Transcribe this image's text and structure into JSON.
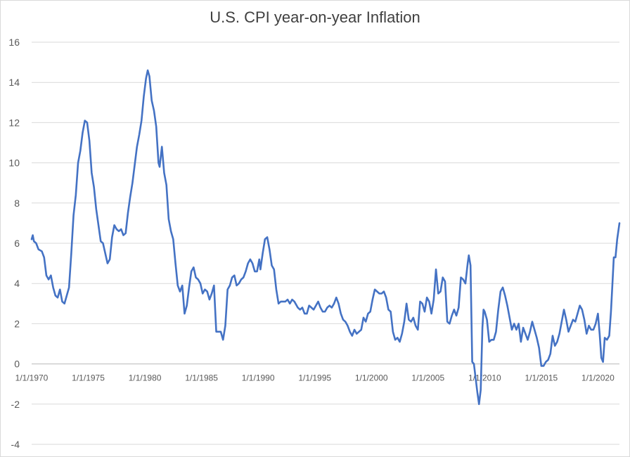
{
  "chart_data": {
    "type": "line",
    "title": "U.S. CPI year-on-year Inflation",
    "xlabel": "",
    "ylabel": "",
    "ylim": [
      -4,
      16
    ],
    "yticks": [
      -4,
      -2,
      0,
      2,
      4,
      6,
      8,
      10,
      12,
      14,
      16
    ],
    "xlim": [
      1970.0,
      2021.9
    ],
    "xtick_labels": [
      "1/1/1970",
      "1/1/1975",
      "1/1/1980",
      "1/1/1985",
      "1/1/1990",
      "1/1/1995",
      "1/1/2000",
      "1/1/2005",
      "1/1/2010",
      "1/1/2015",
      "1/1/2020"
    ],
    "xtick_values": [
      1970,
      1975,
      1980,
      1985,
      1990,
      1995,
      2000,
      2005,
      2010,
      2015,
      2020
    ],
    "grid": "horizontal",
    "legend": "none",
    "series": [
      {
        "color": "#4472c4",
        "points": [
          [
            1970.0,
            6.2
          ],
          [
            1970.1,
            6.4
          ],
          [
            1970.2,
            6.1
          ],
          [
            1970.4,
            6.0
          ],
          [
            1970.6,
            5.7
          ],
          [
            1970.9,
            5.6
          ],
          [
            1971.1,
            5.3
          ],
          [
            1971.3,
            4.4
          ],
          [
            1971.5,
            4.2
          ],
          [
            1971.7,
            4.4
          ],
          [
            1971.9,
            3.8
          ],
          [
            1972.1,
            3.4
          ],
          [
            1972.3,
            3.3
          ],
          [
            1972.5,
            3.7
          ],
          [
            1972.7,
            3.1
          ],
          [
            1972.9,
            3.0
          ],
          [
            1973.1,
            3.4
          ],
          [
            1973.3,
            3.8
          ],
          [
            1973.5,
            5.5
          ],
          [
            1973.7,
            7.4
          ],
          [
            1973.9,
            8.4
          ],
          [
            1974.1,
            10.0
          ],
          [
            1974.3,
            10.6
          ],
          [
            1974.5,
            11.5
          ],
          [
            1974.7,
            12.1
          ],
          [
            1974.9,
            12.0
          ],
          [
            1975.1,
            11.1
          ],
          [
            1975.3,
            9.5
          ],
          [
            1975.5,
            8.8
          ],
          [
            1975.7,
            7.7
          ],
          [
            1975.9,
            6.9
          ],
          [
            1976.1,
            6.1
          ],
          [
            1976.3,
            6.0
          ],
          [
            1976.5,
            5.5
          ],
          [
            1976.7,
            5.0
          ],
          [
            1976.9,
            5.2
          ],
          [
            1977.1,
            6.3
          ],
          [
            1977.3,
            6.9
          ],
          [
            1977.5,
            6.7
          ],
          [
            1977.7,
            6.6
          ],
          [
            1977.9,
            6.7
          ],
          [
            1978.1,
            6.4
          ],
          [
            1978.3,
            6.5
          ],
          [
            1978.5,
            7.5
          ],
          [
            1978.7,
            8.3
          ],
          [
            1978.9,
            9.0
          ],
          [
            1979.1,
            9.9
          ],
          [
            1979.3,
            10.8
          ],
          [
            1979.5,
            11.4
          ],
          [
            1979.7,
            12.1
          ],
          [
            1979.9,
            13.3
          ],
          [
            1980.1,
            14.2
          ],
          [
            1980.25,
            14.6
          ],
          [
            1980.4,
            14.3
          ],
          [
            1980.6,
            13.1
          ],
          [
            1980.8,
            12.6
          ],
          [
            1981.0,
            11.8
          ],
          [
            1981.2,
            10.0
          ],
          [
            1981.3,
            9.8
          ],
          [
            1981.5,
            10.8
          ],
          [
            1981.7,
            9.5
          ],
          [
            1981.9,
            8.9
          ],
          [
            1982.1,
            7.2
          ],
          [
            1982.3,
            6.6
          ],
          [
            1982.5,
            6.2
          ],
          [
            1982.7,
            5.0
          ],
          [
            1982.9,
            3.9
          ],
          [
            1983.1,
            3.6
          ],
          [
            1983.3,
            3.9
          ],
          [
            1983.5,
            2.5
          ],
          [
            1983.7,
            2.9
          ],
          [
            1983.9,
            3.8
          ],
          [
            1984.1,
            4.6
          ],
          [
            1984.3,
            4.8
          ],
          [
            1984.5,
            4.3
          ],
          [
            1984.7,
            4.2
          ],
          [
            1984.9,
            4.0
          ],
          [
            1985.1,
            3.5
          ],
          [
            1985.3,
            3.7
          ],
          [
            1985.5,
            3.6
          ],
          [
            1985.7,
            3.2
          ],
          [
            1985.9,
            3.5
          ],
          [
            1986.1,
            3.9
          ],
          [
            1986.3,
            1.6
          ],
          [
            1986.5,
            1.6
          ],
          [
            1986.7,
            1.6
          ],
          [
            1986.9,
            1.2
          ],
          [
            1987.1,
            1.9
          ],
          [
            1987.3,
            3.7
          ],
          [
            1987.5,
            3.9
          ],
          [
            1987.7,
            4.3
          ],
          [
            1987.9,
            4.4
          ],
          [
            1988.1,
            3.9
          ],
          [
            1988.3,
            4.0
          ],
          [
            1988.5,
            4.2
          ],
          [
            1988.7,
            4.3
          ],
          [
            1988.9,
            4.6
          ],
          [
            1989.1,
            5.0
          ],
          [
            1989.3,
            5.2
          ],
          [
            1989.5,
            5.0
          ],
          [
            1989.7,
            4.6
          ],
          [
            1989.9,
            4.6
          ],
          [
            1990.1,
            5.2
          ],
          [
            1990.2,
            4.7
          ],
          [
            1990.4,
            5.5
          ],
          [
            1990.6,
            6.2
          ],
          [
            1990.8,
            6.3
          ],
          [
            1991.0,
            5.7
          ],
          [
            1991.2,
            4.9
          ],
          [
            1991.4,
            4.7
          ],
          [
            1991.6,
            3.7
          ],
          [
            1991.8,
            3.0
          ],
          [
            1992.0,
            3.1
          ],
          [
            1992.2,
            3.1
          ],
          [
            1992.4,
            3.1
          ],
          [
            1992.6,
            3.2
          ],
          [
            1992.8,
            3.0
          ],
          [
            1993.0,
            3.2
          ],
          [
            1993.2,
            3.1
          ],
          [
            1993.5,
            2.8
          ],
          [
            1993.7,
            2.7
          ],
          [
            1993.9,
            2.8
          ],
          [
            1994.1,
            2.5
          ],
          [
            1994.3,
            2.5
          ],
          [
            1994.5,
            2.9
          ],
          [
            1994.7,
            2.8
          ],
          [
            1994.9,
            2.7
          ],
          [
            1995.1,
            2.9
          ],
          [
            1995.3,
            3.1
          ],
          [
            1995.5,
            2.8
          ],
          [
            1995.7,
            2.6
          ],
          [
            1995.9,
            2.6
          ],
          [
            1996.1,
            2.8
          ],
          [
            1996.3,
            2.9
          ],
          [
            1996.5,
            2.8
          ],
          [
            1996.7,
            3.0
          ],
          [
            1996.9,
            3.3
          ],
          [
            1997.1,
            3.0
          ],
          [
            1997.3,
            2.5
          ],
          [
            1997.5,
            2.2
          ],
          [
            1997.7,
            2.1
          ],
          [
            1997.9,
            1.9
          ],
          [
            1998.1,
            1.6
          ],
          [
            1998.3,
            1.4
          ],
          [
            1998.5,
            1.7
          ],
          [
            1998.7,
            1.5
          ],
          [
            1998.9,
            1.6
          ],
          [
            1999.1,
            1.7
          ],
          [
            1999.3,
            2.3
          ],
          [
            1999.5,
            2.1
          ],
          [
            1999.7,
            2.5
          ],
          [
            1999.9,
            2.6
          ],
          [
            2000.1,
            3.2
          ],
          [
            2000.3,
            3.7
          ],
          [
            2000.5,
            3.6
          ],
          [
            2000.7,
            3.5
          ],
          [
            2000.9,
            3.5
          ],
          [
            2001.1,
            3.6
          ],
          [
            2001.3,
            3.3
          ],
          [
            2001.5,
            2.7
          ],
          [
            2001.7,
            2.6
          ],
          [
            2001.9,
            1.6
          ],
          [
            2002.1,
            1.2
          ],
          [
            2002.3,
            1.3
          ],
          [
            2002.5,
            1.1
          ],
          [
            2002.7,
            1.5
          ],
          [
            2002.9,
            2.1
          ],
          [
            2003.1,
            3.0
          ],
          [
            2003.3,
            2.2
          ],
          [
            2003.5,
            2.1
          ],
          [
            2003.7,
            2.3
          ],
          [
            2003.9,
            1.9
          ],
          [
            2004.1,
            1.7
          ],
          [
            2004.3,
            3.1
          ],
          [
            2004.5,
            3.0
          ],
          [
            2004.7,
            2.6
          ],
          [
            2004.9,
            3.3
          ],
          [
            2005.1,
            3.1
          ],
          [
            2005.3,
            2.5
          ],
          [
            2005.5,
            3.2
          ],
          [
            2005.7,
            4.7
          ],
          [
            2005.9,
            3.5
          ],
          [
            2006.1,
            3.6
          ],
          [
            2006.3,
            4.3
          ],
          [
            2006.5,
            4.1
          ],
          [
            2006.7,
            2.1
          ],
          [
            2006.9,
            2.0
          ],
          [
            2007.1,
            2.4
          ],
          [
            2007.3,
            2.7
          ],
          [
            2007.5,
            2.4
          ],
          [
            2007.7,
            2.8
          ],
          [
            2007.9,
            4.3
          ],
          [
            2008.1,
            4.2
          ],
          [
            2008.3,
            4.0
          ],
          [
            2008.5,
            5.0
          ],
          [
            2008.6,
            5.4
          ],
          [
            2008.75,
            4.9
          ],
          [
            2008.9,
            0.1
          ],
          [
            2009.05,
            0.0
          ],
          [
            2009.2,
            -0.7
          ],
          [
            2009.35,
            -1.4
          ],
          [
            2009.5,
            -2.0
          ],
          [
            2009.65,
            -1.3
          ],
          [
            2009.8,
            1.8
          ],
          [
            2009.9,
            2.7
          ],
          [
            2010.0,
            2.6
          ],
          [
            2010.2,
            2.2
          ],
          [
            2010.4,
            1.1
          ],
          [
            2010.6,
            1.2
          ],
          [
            2010.8,
            1.2
          ],
          [
            2011.0,
            1.6
          ],
          [
            2011.2,
            2.7
          ],
          [
            2011.4,
            3.6
          ],
          [
            2011.6,
            3.8
          ],
          [
            2011.8,
            3.4
          ],
          [
            2012.0,
            2.9
          ],
          [
            2012.2,
            2.3
          ],
          [
            2012.4,
            1.7
          ],
          [
            2012.6,
            2.0
          ],
          [
            2012.8,
            1.7
          ],
          [
            2013.0,
            2.0
          ],
          [
            2013.2,
            1.1
          ],
          [
            2013.4,
            1.8
          ],
          [
            2013.6,
            1.5
          ],
          [
            2013.8,
            1.2
          ],
          [
            2014.0,
            1.6
          ],
          [
            2014.2,
            2.1
          ],
          [
            2014.4,
            1.7
          ],
          [
            2014.6,
            1.3
          ],
          [
            2014.8,
            0.8
          ],
          [
            2015.0,
            -0.1
          ],
          [
            2015.2,
            -0.1
          ],
          [
            2015.4,
            0.1
          ],
          [
            2015.6,
            0.2
          ],
          [
            2015.8,
            0.5
          ],
          [
            2016.0,
            1.4
          ],
          [
            2016.2,
            0.9
          ],
          [
            2016.4,
            1.1
          ],
          [
            2016.6,
            1.5
          ],
          [
            2016.8,
            2.1
          ],
          [
            2017.0,
            2.7
          ],
          [
            2017.2,
            2.2
          ],
          [
            2017.4,
            1.6
          ],
          [
            2017.6,
            1.9
          ],
          [
            2017.8,
            2.2
          ],
          [
            2018.0,
            2.1
          ],
          [
            2018.2,
            2.5
          ],
          [
            2018.4,
            2.9
          ],
          [
            2018.6,
            2.7
          ],
          [
            2018.8,
            2.2
          ],
          [
            2019.0,
            1.5
          ],
          [
            2019.2,
            1.9
          ],
          [
            2019.4,
            1.7
          ],
          [
            2019.6,
            1.7
          ],
          [
            2019.8,
            2.0
          ],
          [
            2020.0,
            2.5
          ],
          [
            2020.15,
            1.5
          ],
          [
            2020.3,
            0.3
          ],
          [
            2020.45,
            0.1
          ],
          [
            2020.6,
            1.3
          ],
          [
            2020.8,
            1.2
          ],
          [
            2021.0,
            1.4
          ],
          [
            2021.15,
            2.6
          ],
          [
            2021.3,
            4.2
          ],
          [
            2021.4,
            5.3
          ],
          [
            2021.55,
            5.3
          ],
          [
            2021.7,
            6.2
          ],
          [
            2021.85,
            6.8
          ],
          [
            2021.9,
            7.0
          ]
        ]
      }
    ]
  }
}
